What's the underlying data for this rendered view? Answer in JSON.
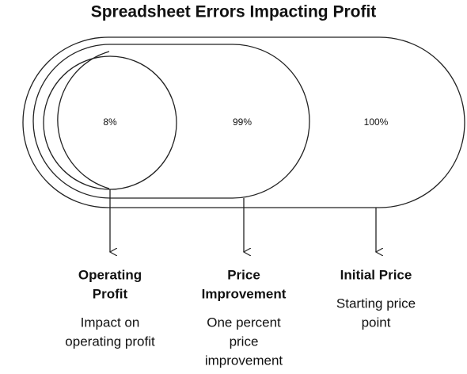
{
  "title": "Spreadsheet Errors Impacting Profit",
  "items": [
    {
      "value": "8%",
      "title": [
        "Operating",
        "Profit"
      ],
      "description": [
        "Impact on",
        "operating profit"
      ]
    },
    {
      "value": "99%",
      "title": [
        "Price",
        "Improvement"
      ],
      "description": [
        "One percent",
        "price",
        "improvement"
      ]
    },
    {
      "value": "100%",
      "title": [
        "Initial Price"
      ],
      "description": [
        "Starting price",
        "point"
      ]
    }
  ]
}
